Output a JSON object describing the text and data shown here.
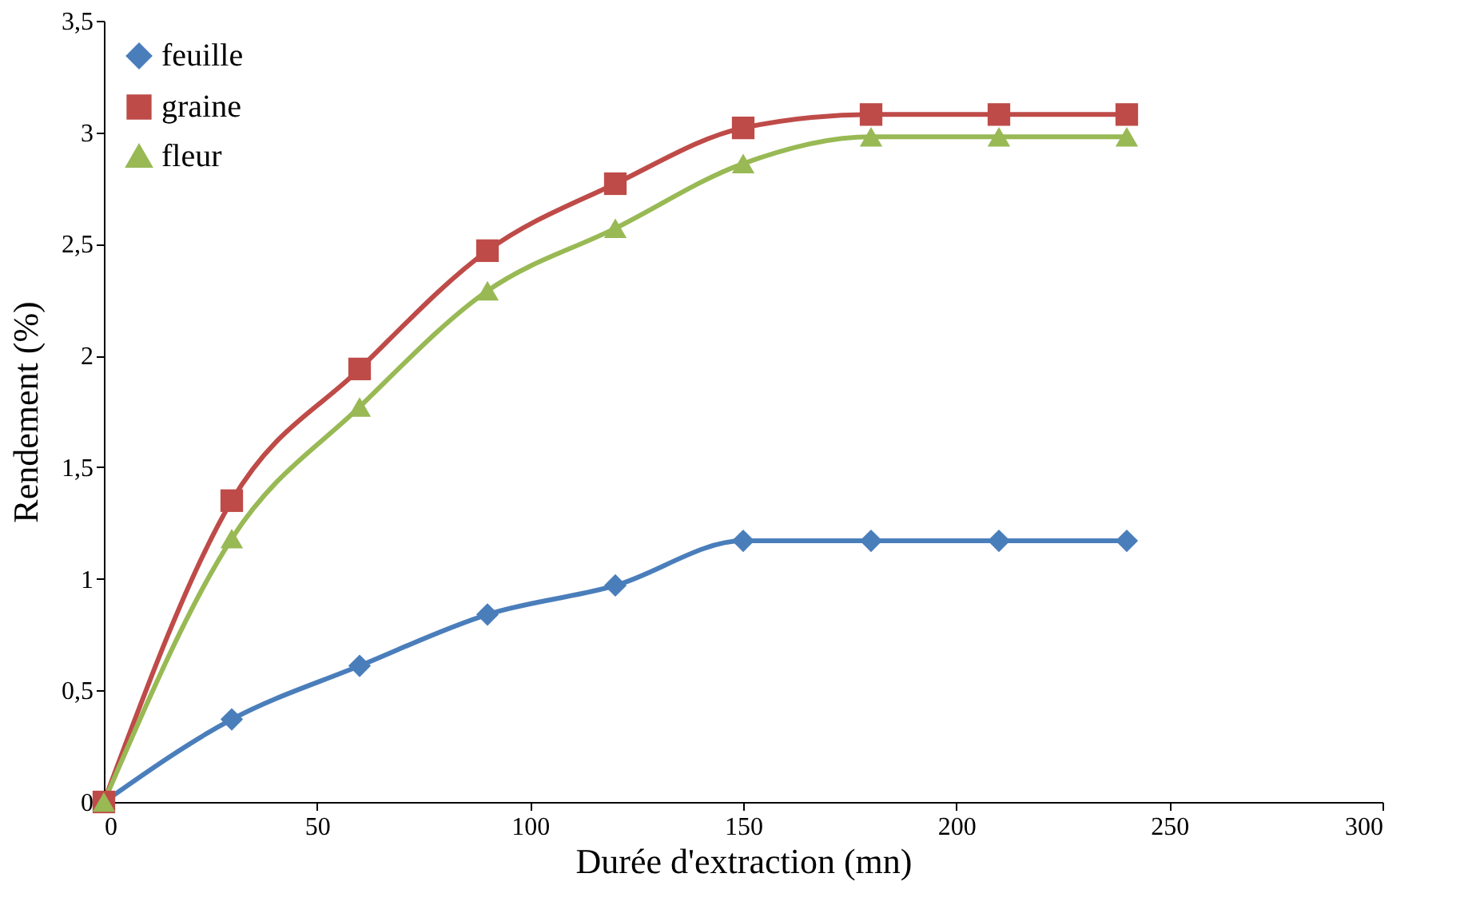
{
  "chart_data": {
    "type": "line",
    "xlabel": "Durée d'extraction (mn)",
    "ylabel": "Rendement (%)",
    "x": [
      0,
      30,
      60,
      90,
      120,
      150,
      180,
      210,
      240
    ],
    "series": [
      {
        "name": "feuille",
        "color": "#4a7ebb",
        "marker": "diamond",
        "values": [
          0,
          0.37,
          0.61,
          0.84,
          0.97,
          1.17,
          1.17,
          1.17,
          1.17
        ]
      },
      {
        "name": "graine",
        "color": "#be4b48",
        "marker": "square",
        "values": [
          0,
          1.35,
          1.94,
          2.47,
          2.77,
          3.02,
          3.08,
          3.08,
          3.08
        ]
      },
      {
        "name": "fleur",
        "color": "#98b954",
        "marker": "triangle",
        "values": [
          0,
          1.18,
          1.77,
          2.29,
          2.57,
          2.86,
          2.98,
          2.98,
          2.98
        ]
      }
    ],
    "xlim": [
      0,
      300
    ],
    "xticks": [
      0,
      50,
      100,
      150,
      200,
      250,
      300
    ],
    "ylim": [
      0,
      3.5
    ],
    "yticks": [
      0,
      {
        "value": 0.5,
        "label": "0,5"
      },
      1,
      {
        "value": 1.5,
        "label": "1,5"
      },
      2,
      {
        "value": 2.5,
        "label": "2,5"
      },
      3,
      {
        "value": 3.5,
        "label": "3,5"
      }
    ],
    "grid": false,
    "legend": "top left",
    "line_style": "solid"
  }
}
